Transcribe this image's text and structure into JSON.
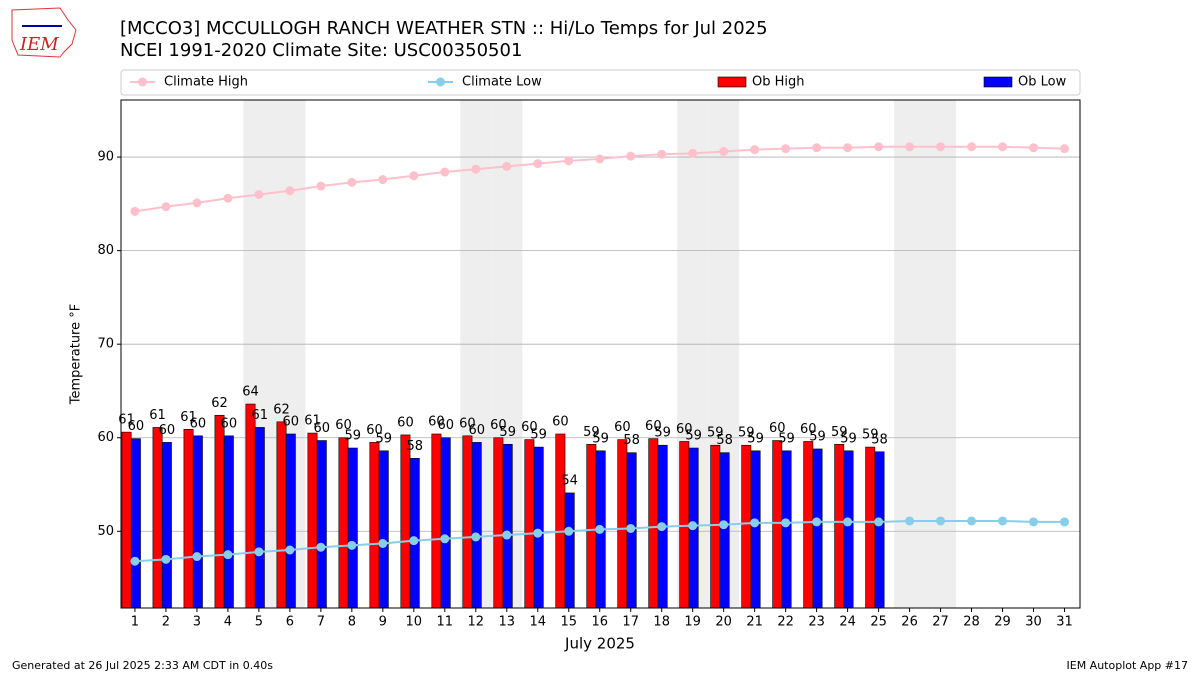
{
  "logo": "IEM",
  "footer": {
    "left": "Generated at 26 Jul 2025 2:33 AM CDT in 0.40s",
    "right": "IEM Autoplot App #17"
  },
  "chart_data": {
    "type": "bar",
    "title": "[MCCO3] MCCULLOGH RANCH WEATHER STN :: Hi/Lo Temps for Jul 2025",
    "subtitle": "NCEI 1991-2020 Climate Site: USC00350501",
    "x_label": "July 2025",
    "y_label": "Temperature °F",
    "x": [
      1,
      2,
      3,
      4,
      5,
      6,
      7,
      8,
      9,
      10,
      11,
      12,
      13,
      14,
      15,
      16,
      17,
      18,
      19,
      20,
      21,
      22,
      23,
      24,
      25,
      26,
      27,
      28,
      29,
      30,
      31
    ],
    "xlim": [
      0.55,
      31.5
    ],
    "xticks": [
      1,
      2,
      3,
      4,
      5,
      6,
      7,
      8,
      9,
      10,
      11,
      12,
      13,
      14,
      15,
      16,
      17,
      18,
      19,
      20,
      21,
      22,
      23,
      24,
      25,
      26,
      27,
      28,
      29,
      30,
      31
    ],
    "ylim": [
      41.8,
      96.1
    ],
    "yticks": [
      50,
      60,
      70,
      80,
      90
    ],
    "grid": true,
    "weekend_days": [
      5,
      6,
      12,
      13,
      19,
      20,
      26,
      27
    ],
    "weekend_color": "#eeeeee",
    "series": [
      {
        "name": "Climate High",
        "type": "line",
        "color": "#ffc0cb",
        "values": [
          84.2,
          84.7,
          85.1,
          85.6,
          86.0,
          86.4,
          86.9,
          87.3,
          87.6,
          88.0,
          88.4,
          88.7,
          89.0,
          89.3,
          89.6,
          89.8,
          90.1,
          90.3,
          90.4,
          90.6,
          90.8,
          90.9,
          91.0,
          91.0,
          91.1,
          91.1,
          91.1,
          91.1,
          91.1,
          91.0,
          90.9
        ]
      },
      {
        "name": "Climate Low",
        "type": "line",
        "color": "#87ceeb",
        "values": [
          46.8,
          47.0,
          47.3,
          47.5,
          47.8,
          48.0,
          48.3,
          48.5,
          48.7,
          49.0,
          49.2,
          49.4,
          49.6,
          49.8,
          50.0,
          50.2,
          50.3,
          50.5,
          50.6,
          50.7,
          50.9,
          50.9,
          51.0,
          51.0,
          51.0,
          51.1,
          51.1,
          51.1,
          51.1,
          51.0,
          51.0
        ]
      },
      {
        "name": "Ob High",
        "type": "bar",
        "color": "#ff0000",
        "values": [
          60.6,
          61.1,
          60.9,
          62.4,
          63.6,
          61.7,
          60.5,
          60.0,
          59.5,
          60.3,
          60.4,
          60.2,
          60.0,
          59.8,
          60.4,
          59.3,
          59.8,
          59.9,
          59.6,
          59.2,
          59.2,
          59.7,
          59.6,
          59.3,
          59.0,
          null,
          null,
          null,
          null,
          null,
          null
        ],
        "value_labels": [
          "61",
          "61",
          "61",
          "62",
          "64",
          "62",
          "61",
          "60",
          "60",
          "60",
          "60",
          "60",
          "60",
          "60",
          "60",
          "59",
          "60",
          "60",
          "60",
          "59",
          "59",
          "60",
          "60",
          "59",
          "59",
          null,
          null,
          null,
          null,
          null,
          null
        ]
      },
      {
        "name": "Ob Low",
        "type": "bar",
        "color": "#0000ff",
        "values": [
          59.9,
          59.5,
          60.2,
          60.2,
          61.1,
          60.4,
          59.7,
          58.9,
          58.6,
          57.8,
          60.0,
          59.5,
          59.3,
          59.0,
          54.1,
          58.6,
          58.4,
          59.2,
          58.9,
          58.4,
          58.6,
          58.6,
          58.8,
          58.6,
          58.5,
          null,
          null,
          null,
          null,
          null,
          null
        ],
        "value_labels": [
          "60",
          "60",
          "60",
          "60",
          "61",
          "60",
          "60",
          "59",
          "59",
          "58",
          "60",
          "60",
          "59",
          "59",
          "54",
          "59",
          "58",
          "59",
          "59",
          "58",
          "59",
          "59",
          "59",
          "59",
          "58",
          null,
          null,
          null,
          null,
          null,
          null
        ]
      }
    ]
  }
}
